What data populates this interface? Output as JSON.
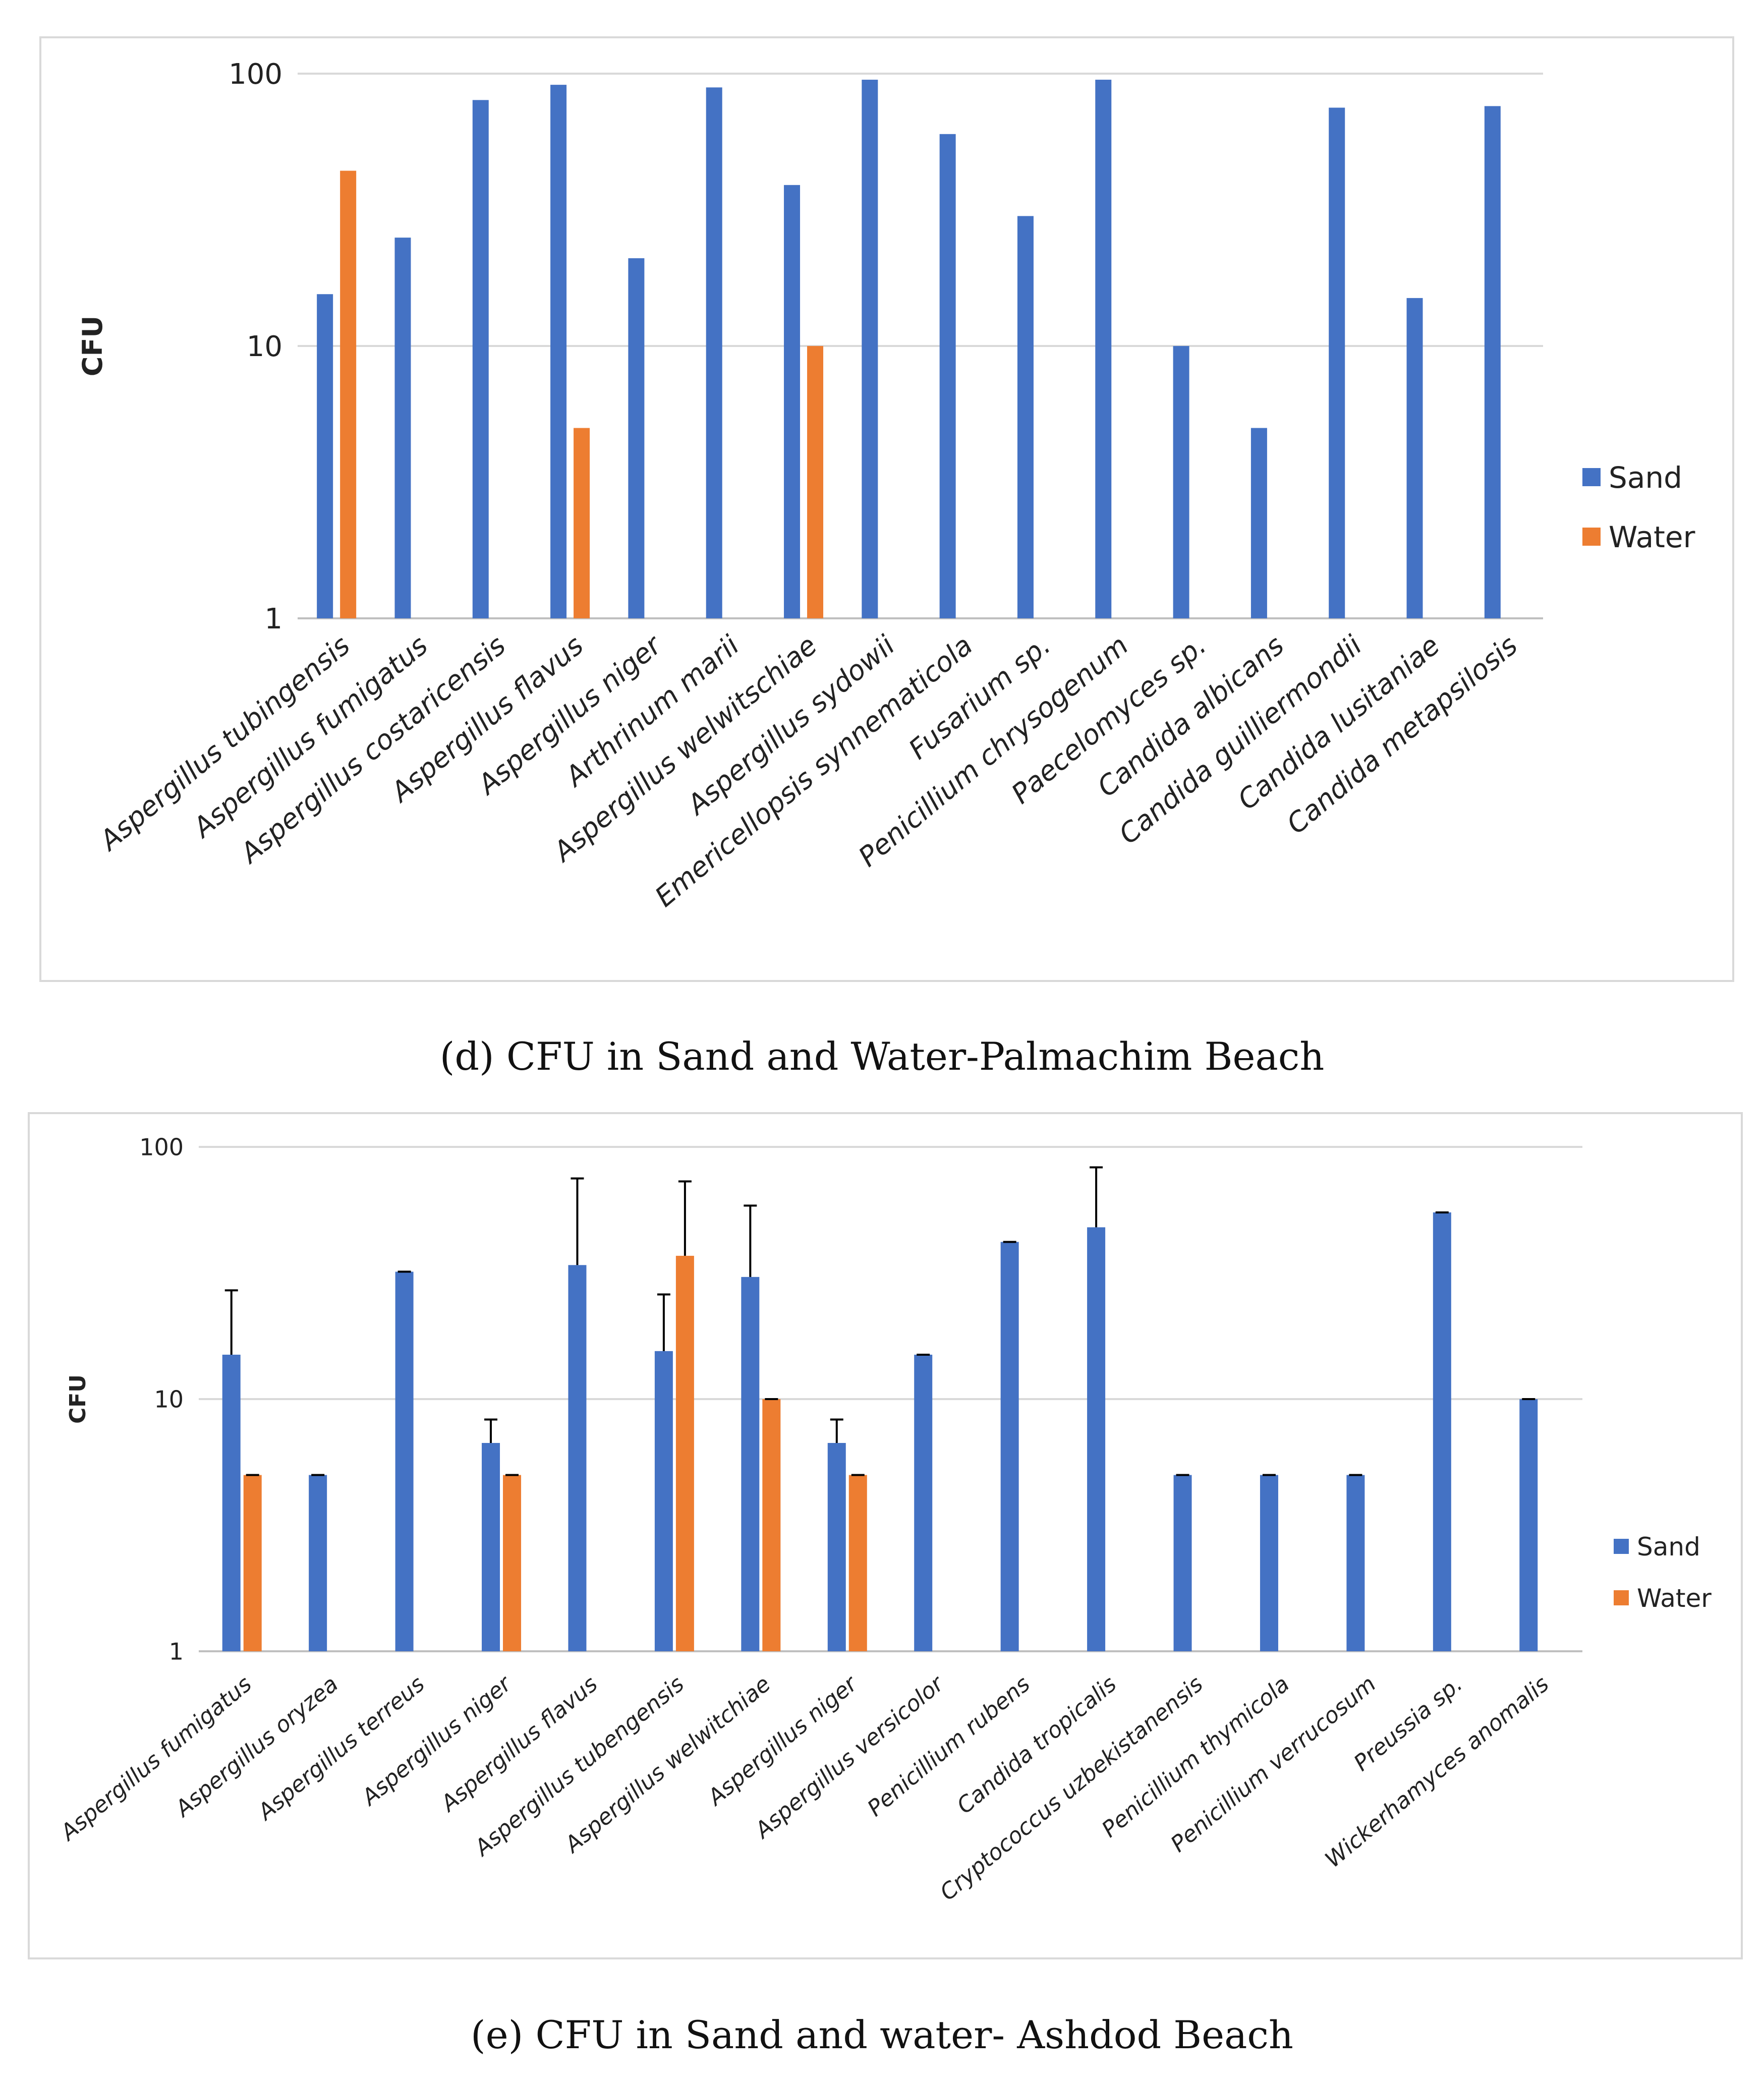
{
  "colors": {
    "sand": "#4472C4",
    "water": "#ED7D31",
    "grid": "#d9d9d9",
    "axis": "#bfbfbf"
  },
  "captions": {
    "d": "(d) CFU in Sand and Water-Palmachim Beach",
    "e": "(e) CFU in Sand and water- Ashdod Beach"
  },
  "chart_data": [
    {
      "type": "bar",
      "scale": "log",
      "title": "",
      "xlabel": "",
      "ylabel": "CFU",
      "ylim": [
        1,
        100
      ],
      "yticks": [
        "1",
        "10",
        "100"
      ],
      "grid": true,
      "legend_position": "right",
      "error_bars": false,
      "categories": [
        "Aspergillus tubingensis",
        "Aspergillus fumigatus",
        "Aspergillus costaricensis",
        "Aspergillus flavus",
        "Aspergillus niger",
        "Arthrinum marii",
        "Aspergillus welwitschiae",
        "Aspergillus sydowii",
        "Emericellopsis synnematicola",
        "Fusarium sp.",
        "Penicillium chrysogenum",
        "Paecelomyces sp.",
        "Candida albicans",
        "Candida guilliermondii",
        "Candida lusitaniae",
        "Candida metapsilosis"
      ],
      "series": [
        {
          "name": "Sand",
          "values": [
            15.5,
            25,
            80,
            91,
            21,
            89,
            39,
            95,
            60,
            30,
            95,
            10,
            5,
            75,
            15,
            76
          ]
        },
        {
          "name": "Water",
          "values": [
            44,
            null,
            null,
            5,
            null,
            null,
            10,
            null,
            null,
            null,
            null,
            null,
            null,
            null,
            null,
            null
          ]
        }
      ]
    },
    {
      "type": "bar",
      "scale": "log",
      "title": "",
      "xlabel": "",
      "ylabel": "CFU",
      "ylim": [
        1,
        100
      ],
      "yticks": [
        "1",
        "10",
        "100"
      ],
      "grid": true,
      "legend_position": "right",
      "error_bars": true,
      "categories": [
        "Aspergillus fumigatus",
        "Aspergillus oryzea",
        "Aspergillus terreus",
        "Aspergillus niger",
        "Aspergillus flavus",
        "Aspergillus tubengensis",
        "Aspergillus welwitchiae",
        "Aspergillus niger",
        "Aspergillus versicolor",
        "Penicillium rubens",
        "Candida tropicalis",
        "Cryptococcus uzbekistanensis",
        "Penicillium thymicola",
        "Penicillium verrucosum",
        "Preussia sp.",
        "Wickerhamyces anomalis"
      ],
      "series": [
        {
          "name": "Sand",
          "values": [
            15,
            5,
            32,
            6.7,
            34,
            15.5,
            30.5,
            6.7,
            15,
            42,
            48,
            5,
            5,
            5,
            55,
            10
          ],
          "errors": [
            12,
            0,
            0,
            1.6,
            41,
            10.5,
            28,
            1.6,
            0,
            0,
            35,
            0,
            0,
            0,
            0,
            0
          ]
        },
        {
          "name": "Water",
          "values": [
            5,
            null,
            null,
            5,
            null,
            37,
            10,
            5,
            null,
            null,
            null,
            null,
            null,
            null,
            null,
            null
          ],
          "errors": [
            0,
            null,
            null,
            0,
            null,
            36,
            0,
            0,
            null,
            null,
            null,
            null,
            null,
            null,
            null,
            null
          ]
        }
      ]
    }
  ]
}
